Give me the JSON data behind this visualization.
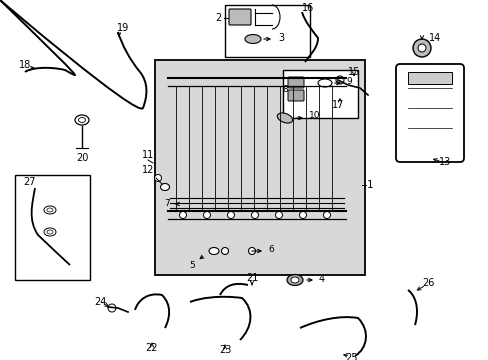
{
  "bg_color": "#ffffff",
  "rad_bg": "#d8d8d8",
  "fig_width": 4.89,
  "fig_height": 3.6,
  "dpi": 100
}
